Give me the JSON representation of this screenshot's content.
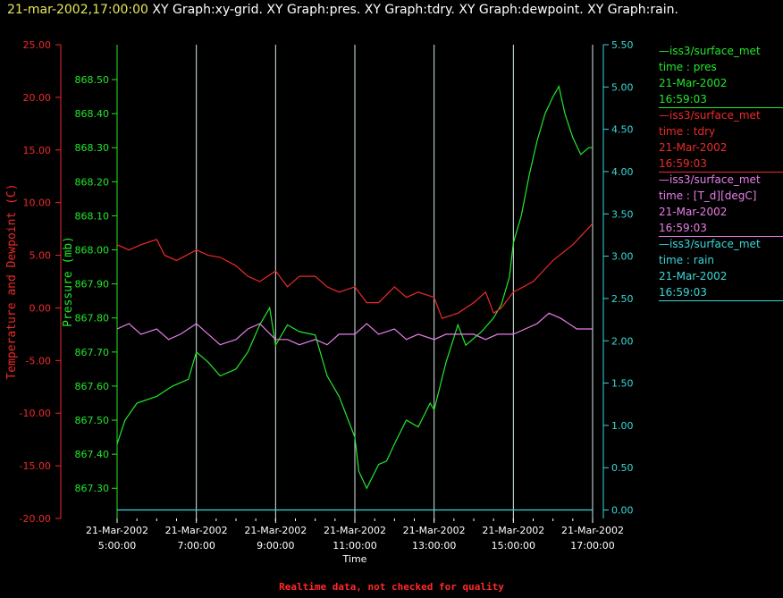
{
  "header": {
    "timestamp": "21-mar-2002,17:00:00",
    "graphs_label": "XY Graph:xy-grid.  XY Graph:pres.  XY Graph:tdry.  XY Graph:dewpoint.  XY Graph:rain."
  },
  "footer": {
    "note": "Realtime data, not checked for quality"
  },
  "legend": [
    {
      "series": "iss3/surface_met",
      "field": "time : pres",
      "date": "21-Mar-2002",
      "time": "16:59:03",
      "color": "#22e82a"
    },
    {
      "series": "iss3/surface_met",
      "field": "time : tdry",
      "date": "21-Mar-2002",
      "time": "16:59:03",
      "color": "#ee2a2a"
    },
    {
      "series": "iss3/surface_met",
      "field": "time : [T_d][degC]",
      "date": "21-Mar-2002",
      "time": "16:59:03",
      "color": "#e87fe8"
    },
    {
      "series": "iss3/surface_met",
      "field": "time : rain",
      "date": "21-Mar-2002",
      "time": "16:59:03",
      "color": "#3ad8d8"
    }
  ],
  "chart_data": {
    "type": "line",
    "xlabel": "Time",
    "x_ticks": [
      {
        "date": "21-Mar-2002",
        "time": "5:00:00",
        "hour": 5
      },
      {
        "date": "21-Mar-2002",
        "time": "7:00:00",
        "hour": 7
      },
      {
        "date": "21-Mar-2002",
        "time": "9:00:00",
        "hour": 9
      },
      {
        "date": "21-Mar-2002",
        "time": "11:00:00",
        "hour": 11
      },
      {
        "date": "21-Mar-2002",
        "time": "13:00:00",
        "hour": 13
      },
      {
        "date": "21-Mar-2002",
        "time": "15:00:00",
        "hour": 15
      },
      {
        "date": "21-Mar-2002",
        "time": "17:00:00",
        "hour": 17
      }
    ],
    "xlim": [
      5,
      17
    ],
    "temp_axis": {
      "label": "Temperature and Dewpoint (C)",
      "ylim": [
        -20,
        25
      ],
      "ticks": [
        "25.00",
        "20.00",
        "15.00",
        "10.00",
        "5.00",
        "0.00",
        "-5.00",
        "-10.00",
        "-15.00",
        "-20.00"
      ],
      "color": "#ee2a2a"
    },
    "pres_axis": {
      "label": "Pressure (mb)",
      "ylim": [
        867.2114,
        868.6024
      ],
      "ticks": [
        "868.50",
        "868.40",
        "868.30",
        "868.20",
        "868.10",
        "868.00",
        "867.90",
        "867.80",
        "867.70",
        "867.60",
        "867.50",
        "867.40",
        "867.30"
      ],
      "color": "#22e82a"
    },
    "rain_axis": {
      "ylim": [
        -0.1,
        5.5
      ],
      "ticks": [
        "5.50",
        "5.00",
        "4.50",
        "4.00",
        "3.50",
        "3.00",
        "2.50",
        "2.00",
        "1.50",
        "1.00",
        "0.50",
        "0.00"
      ],
      "color": "#3ad8d8"
    },
    "series": [
      {
        "name": "iss3/surface_met time : pres",
        "axis": "pres",
        "color": "#22e82a",
        "x": [
          5.0,
          5.2,
          5.5,
          6.0,
          6.4,
          6.8,
          7.0,
          7.3,
          7.6,
          8.0,
          8.3,
          8.6,
          8.85,
          9.0,
          9.3,
          9.6,
          10.0,
          10.3,
          10.6,
          11.0,
          11.1,
          11.3,
          11.6,
          11.8,
          12.0,
          12.3,
          12.6,
          12.9,
          13.0,
          13.3,
          13.6,
          13.8,
          14.0,
          14.2,
          14.5,
          14.7,
          14.9,
          15.0,
          15.2,
          15.4,
          15.6,
          15.8,
          16.0,
          16.15,
          16.3,
          16.5,
          16.7,
          16.9,
          17.0
        ],
        "y": [
          867.43,
          867.5,
          867.55,
          867.57,
          867.6,
          867.62,
          867.7,
          867.67,
          867.63,
          867.65,
          867.7,
          867.78,
          867.83,
          867.72,
          867.78,
          867.76,
          867.75,
          867.63,
          867.57,
          867.45,
          867.35,
          867.3,
          867.37,
          867.38,
          867.43,
          867.5,
          867.48,
          867.55,
          867.53,
          867.67,
          867.78,
          867.72,
          867.74,
          867.76,
          867.8,
          867.84,
          867.92,
          868.02,
          868.1,
          868.22,
          868.32,
          868.4,
          868.45,
          868.48,
          868.4,
          868.33,
          868.28,
          868.3,
          868.3
        ]
      },
      {
        "name": "iss3/surface_met time : tdry",
        "axis": "temp",
        "color": "#ee2a2a",
        "x": [
          5.0,
          5.3,
          5.6,
          6.0,
          6.2,
          6.5,
          7.0,
          7.3,
          7.6,
          8.0,
          8.3,
          8.6,
          9.0,
          9.3,
          9.6,
          10.0,
          10.3,
          10.6,
          11.0,
          11.3,
          11.6,
          12.0,
          12.3,
          12.6,
          13.0,
          13.2,
          13.6,
          14.0,
          14.3,
          14.5,
          14.7,
          15.0,
          15.5,
          16.0,
          16.5,
          17.0
        ],
        "y": [
          6.0,
          5.5,
          6.0,
          6.5,
          5.0,
          4.5,
          5.5,
          5.0,
          4.8,
          4.0,
          3.0,
          2.5,
          3.5,
          2.0,
          3.0,
          3.0,
          2.0,
          1.5,
          2.0,
          0.5,
          0.5,
          2.0,
          1.0,
          1.5,
          1.0,
          -1.0,
          -0.5,
          0.5,
          1.5,
          -0.5,
          0.0,
          1.5,
          2.5,
          4.5,
          6.0,
          8.0
        ]
      },
      {
        "name": "iss3/surface_met time : [T_d][degC]",
        "axis": "temp",
        "color": "#e87fe8",
        "x": [
          5.0,
          5.3,
          5.6,
          6.0,
          6.3,
          6.6,
          7.0,
          7.3,
          7.6,
          8.0,
          8.3,
          8.6,
          9.0,
          9.3,
          9.6,
          10.0,
          10.3,
          10.6,
          11.0,
          11.3,
          11.6,
          12.0,
          12.3,
          12.6,
          13.0,
          13.3,
          13.6,
          14.0,
          14.3,
          14.6,
          15.0,
          15.3,
          15.6,
          15.9,
          16.2,
          16.6,
          17.0
        ],
        "y": [
          -2.0,
          -1.5,
          -2.5,
          -2.0,
          -3.0,
          -2.5,
          -1.5,
          -2.5,
          -3.5,
          -3.0,
          -2.0,
          -1.5,
          -3.0,
          -3.0,
          -3.5,
          -3.0,
          -3.5,
          -2.5,
          -2.5,
          -1.5,
          -2.5,
          -2.0,
          -3.0,
          -2.5,
          -3.0,
          -2.5,
          -2.5,
          -2.5,
          -3.0,
          -2.5,
          -2.5,
          -2.0,
          -1.5,
          -0.5,
          -1.0,
          -2.0,
          -2.0
        ]
      },
      {
        "name": "iss3/surface_met time : rain",
        "axis": "rain",
        "color": "#3ad8d8",
        "x": [
          5.0,
          17.0
        ],
        "y": [
          0.0,
          0.0
        ]
      }
    ]
  }
}
